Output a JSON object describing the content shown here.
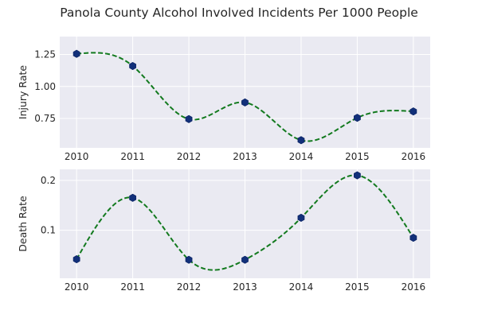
{
  "chart_data": {
    "title": "Panola County Alcohol Involved Incidents Per 1000 People",
    "panels": [
      {
        "type": "line",
        "ylabel": "Injury Rate",
        "x": [
          2010,
          2011,
          2012,
          2013,
          2014,
          2015,
          2016
        ],
        "values": [
          1.255,
          1.16,
          0.745,
          0.875,
          0.58,
          0.755,
          0.805
        ],
        "xlim": [
          2009.7,
          2016.3
        ],
        "ylim": [
          0.52,
          1.39
        ],
        "yticks": [
          0.75,
          1.0,
          1.25
        ],
        "ytick_labels": [
          "0.75",
          "1.00",
          "1.25"
        ],
        "xtick_labels": [
          "2010",
          "2011",
          "2012",
          "2013",
          "2014",
          "2015",
          "2016"
        ],
        "smooth_curve": "dashed green spline through points",
        "grid": true
      },
      {
        "type": "line",
        "ylabel": "Death Rate",
        "x": [
          2010,
          2011,
          2012,
          2013,
          2014,
          2015,
          2016
        ],
        "values": [
          0.042,
          0.165,
          0.041,
          0.041,
          0.125,
          0.21,
          0.085
        ],
        "xlim": [
          2009.7,
          2016.3
        ],
        "ylim": [
          0.004,
          0.222
        ],
        "yticks": [
          0.1,
          0.2
        ],
        "ytick_labels": [
          "0.1",
          "0.2"
        ],
        "xtick_labels": [
          "2010",
          "2011",
          "2012",
          "2013",
          "2014",
          "2015",
          "2016"
        ],
        "smooth_curve": "dashed green spline through points",
        "grid": true
      }
    ],
    "colors": {
      "line": "#137a1f",
      "marker": "#12307a",
      "background": "#eaeaf2"
    }
  }
}
